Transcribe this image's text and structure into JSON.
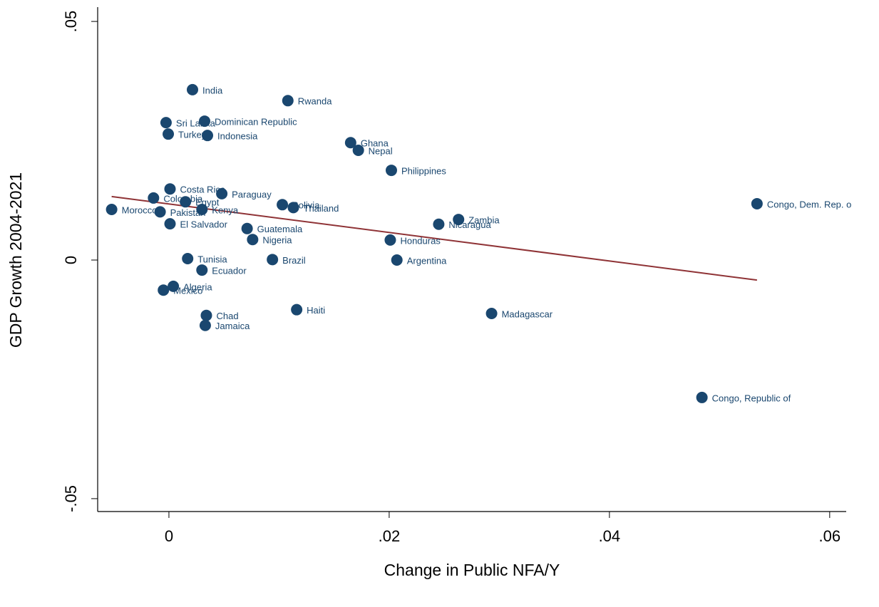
{
  "chart_data": {
    "type": "scatter",
    "x_label": "Change in Public NFA/Y",
    "y_label": "GDP Growth 2004-2021",
    "color": "#1a476f",
    "labels": [
      "India",
      "Rwanda",
      "Dominican Republic",
      "Sri Lanka",
      "Turkey",
      "Indonesia",
      "Ghana",
      "Nepal",
      "Philippines",
      "Costa Rica",
      "Paraguay",
      "Colombia",
      "Egypt",
      "Bolivia",
      "Thailand",
      "Kenya",
      "Morocco",
      "Pakistan",
      "Congo, Dem. Rep. o",
      "Zambia",
      "Nicaragua",
      "El Salvador",
      "Guatemala",
      "Nigeria",
      "Honduras",
      "Tunisia",
      "Brazil",
      "Argentina",
      "Ecuador",
      "Algeria",
      "Mexico",
      "Haiti",
      "Madagascar",
      "Chad",
      "Jamaica",
      "Congo, Republic of"
    ],
    "x": [
      0.00214,
      0.0108,
      0.00324,
      -0.00026,
      -6e-05,
      0.0035,
      0.0165,
      0.0172,
      0.0202,
      0.0001,
      0.0048,
      -0.0014,
      0.0015,
      0.0103,
      0.0113,
      0.003,
      -0.0052,
      -0.0008,
      0.0534,
      0.0263,
      0.0245,
      0.0001,
      0.0071,
      0.0076,
      0.0201,
      0.0017,
      0.0094,
      0.0207,
      0.003,
      0.0004,
      -0.0005,
      0.0116,
      0.0293,
      0.0034,
      0.0033,
      0.0484
    ],
    "y": [
      0.0357,
      0.0334,
      0.0291,
      0.0288,
      0.0264,
      0.0261,
      0.0246,
      0.023,
      0.0188,
      0.0149,
      0.0139,
      0.013,
      0.0122,
      0.0116,
      0.011,
      0.0106,
      0.0106,
      0.0101,
      0.0118,
      0.0085,
      0.0075,
      0.0076,
      0.0066,
      0.0043,
      0.0042,
      0.0003,
      0.0001,
      0.0,
      -0.0021,
      -0.0055,
      -0.0063,
      -0.0104,
      -0.0112,
      -0.0116,
      -0.0137,
      -0.0288
    ],
    "fit": {
      "color": "#8f3336",
      "x": [
        -0.0052,
        0.0534
      ],
      "y": [
        0.0133,
        -0.0042
      ]
    },
    "xlim": [
      -0.00647,
      0.0615
    ],
    "ylim": [
      -0.0527,
      0.053
    ],
    "xticks": [
      0,
      {
        "value": 0.02,
        "label": ".02"
      },
      {
        "value": 0.04,
        "label": ".04"
      },
      {
        "value": 0.06,
        "label": ".06"
      }
    ],
    "yticks": [
      {
        "value": -0.05,
        "label": "-.05"
      },
      0,
      {
        "value": 0.05,
        "label": ".05"
      }
    ]
  }
}
